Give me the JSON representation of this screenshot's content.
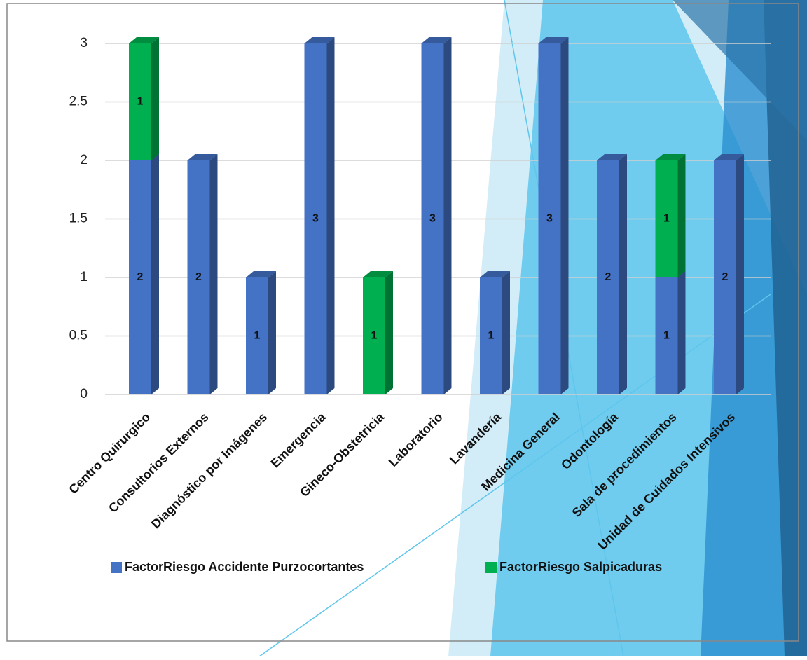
{
  "chart_data": {
    "type": "bar",
    "stacked": true,
    "grid": true,
    "categories": [
      "Centro Quirurgico",
      "Consultorios Externos",
      "Diagnóstico por Imágenes",
      "Emergencia",
      "Gineco-Obstetricia",
      "Laboratorio",
      "Lavandería",
      "Medicina General",
      "Odontología",
      "Sala de procedimientos",
      "Unidad de Cuidados Intensivos"
    ],
    "series": [
      {
        "name": "FactorRiesgo Accidente Purzocortantes",
        "color": "#4472c4",
        "values": [
          2,
          2,
          1,
          3,
          null,
          3,
          1,
          3,
          2,
          1,
          2
        ]
      },
      {
        "name": "FactorRiesgo Salpicaduras",
        "color": "#00b050",
        "values": [
          1,
          null,
          null,
          null,
          1,
          null,
          null,
          null,
          null,
          1,
          null
        ]
      }
    ],
    "ylim": [
      0,
      3
    ],
    "yticks": [
      0,
      0.5,
      1,
      1.5,
      2,
      2.5,
      3
    ],
    "legend": "bottom"
  }
}
